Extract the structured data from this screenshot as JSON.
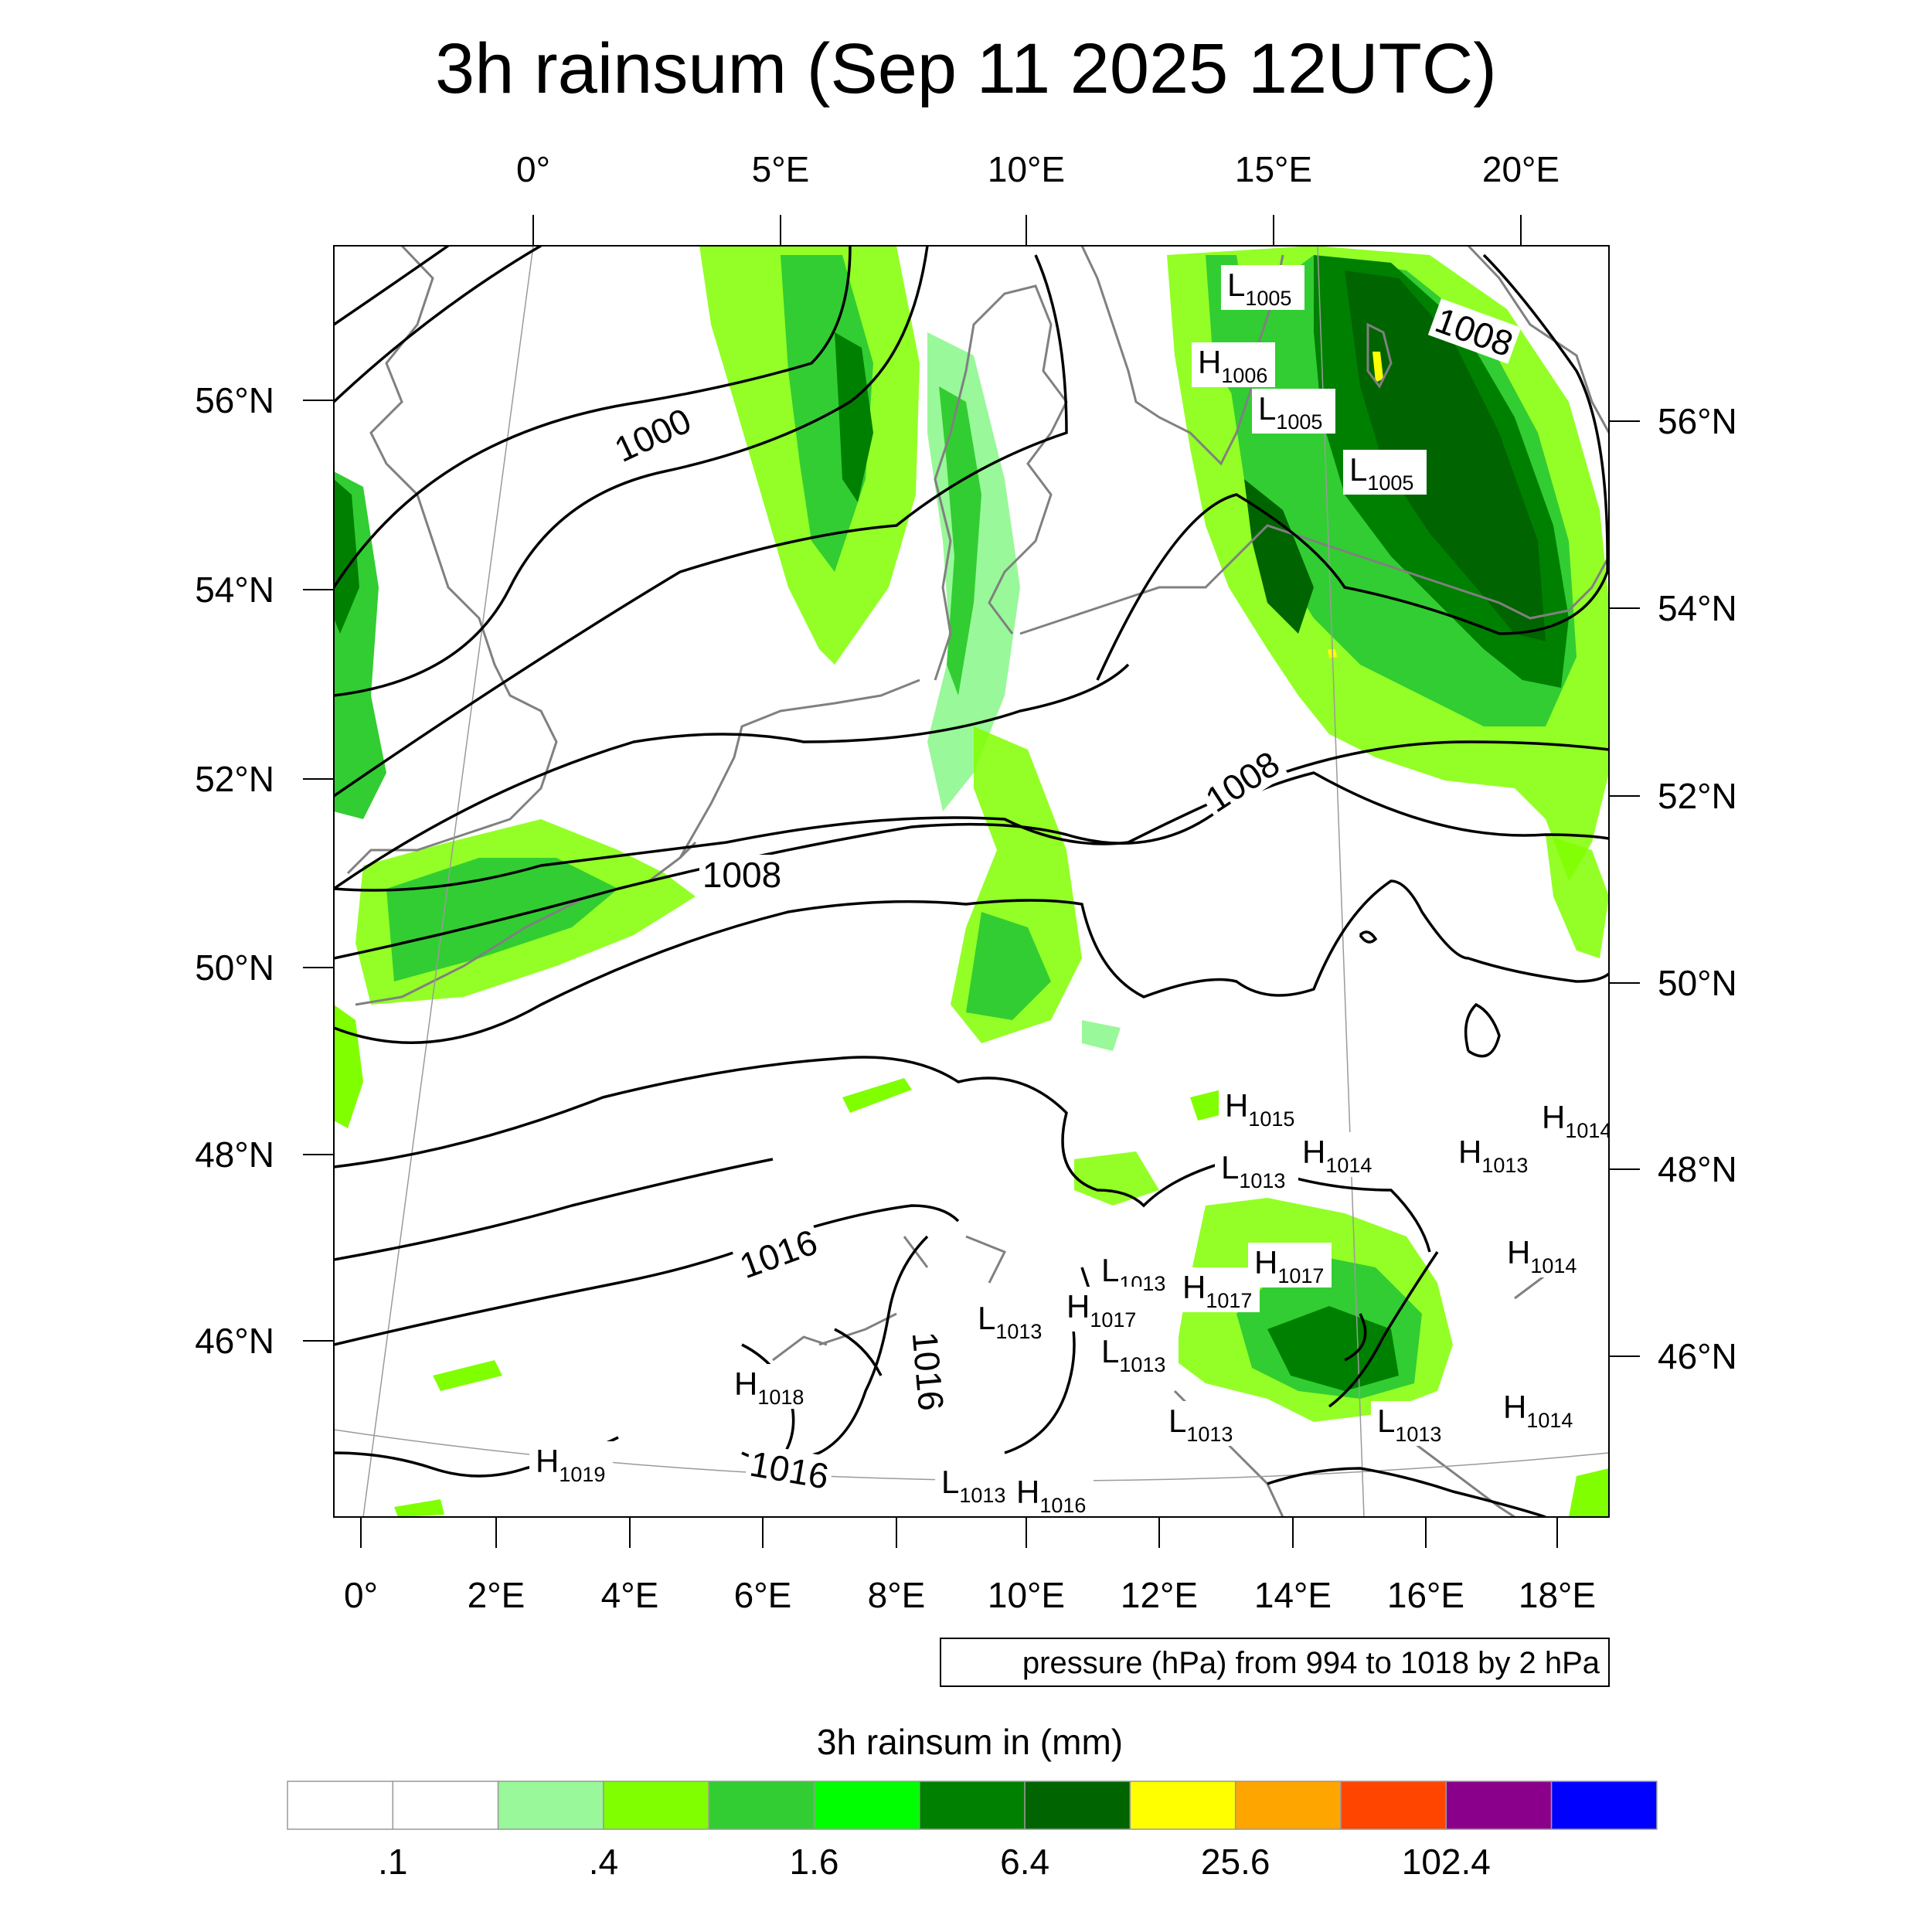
{
  "title": "3h rainsum (Sep 11 2025 12UTC)",
  "top_lon_labels": [
    "0°",
    "5°E",
    "10°E",
    "15°E",
    "20°E"
  ],
  "bottom_lon_labels": [
    "0°",
    "2°E",
    "4°E",
    "6°E",
    "8°E",
    "10°E",
    "12°E",
    "14°E",
    "16°E",
    "18°E"
  ],
  "left_lat_labels": [
    "56°N",
    "54°N",
    "52°N",
    "50°N",
    "48°N",
    "46°N"
  ],
  "right_lat_labels": [
    "56°N",
    "54°N",
    "52°N",
    "50°N",
    "48°N",
    "46°N"
  ],
  "isobar_labels": [
    "1000",
    "1008",
    "1008",
    "1008",
    "1016",
    "1016",
    "1016"
  ],
  "pressure_centers": [
    {
      "type": "L",
      "value": "1005"
    },
    {
      "type": "H",
      "value": "1006"
    },
    {
      "type": "L",
      "value": "1005"
    },
    {
      "type": "L",
      "value": "1005"
    },
    {
      "type": "H",
      "value": "1015"
    },
    {
      "type": "H",
      "value": "1014"
    },
    {
      "type": "L",
      "value": "1013"
    },
    {
      "type": "H",
      "value": "1013"
    },
    {
      "type": "H",
      "value": "1014"
    },
    {
      "type": "H",
      "value": "1014"
    },
    {
      "type": "L",
      "value": "1013"
    },
    {
      "type": "H",
      "value": "1017"
    },
    {
      "type": "H",
      "value": "1017"
    },
    {
      "type": "L",
      "value": "1013"
    },
    {
      "type": "H",
      "value": "1017"
    },
    {
      "type": "L",
      "value": "1013"
    },
    {
      "type": "H",
      "value": "1018"
    },
    {
      "type": "L",
      "value": "1013"
    },
    {
      "type": "H",
      "value": "1014"
    },
    {
      "type": "H",
      "value": "1019"
    },
    {
      "type": "L",
      "value": "1013"
    },
    {
      "type": "L",
      "value": "1013"
    },
    {
      "type": "H",
      "value": "1016"
    }
  ],
  "contour_note": "pressure (hPa) from 994 to 1018 by 2 hPa",
  "colorbar": {
    "title": "3h rainsum in (mm)",
    "labels": [
      ".1",
      ".4",
      "1.6",
      "6.4",
      "25.6",
      "102.4"
    ],
    "colors": [
      "#ffffff",
      "#ffffff",
      "#99f899",
      "#80ff00",
      "#32cd32",
      "#00ff00",
      "#008000",
      "#006400",
      "#ffff00",
      "#ffa500",
      "#ff4500",
      "#8b008b",
      "#0000ff"
    ]
  },
  "colors": {
    "rain_light": "#99f899",
    "rain_lime": "#80ff00",
    "rain_mid": "#32cd32",
    "rain_bright": "#00ff00",
    "rain_dark": "#008000",
    "rain_darkest": "#006400",
    "rain_yellow": "#ffff00",
    "coast": "#808080",
    "isobar": "#000000"
  }
}
